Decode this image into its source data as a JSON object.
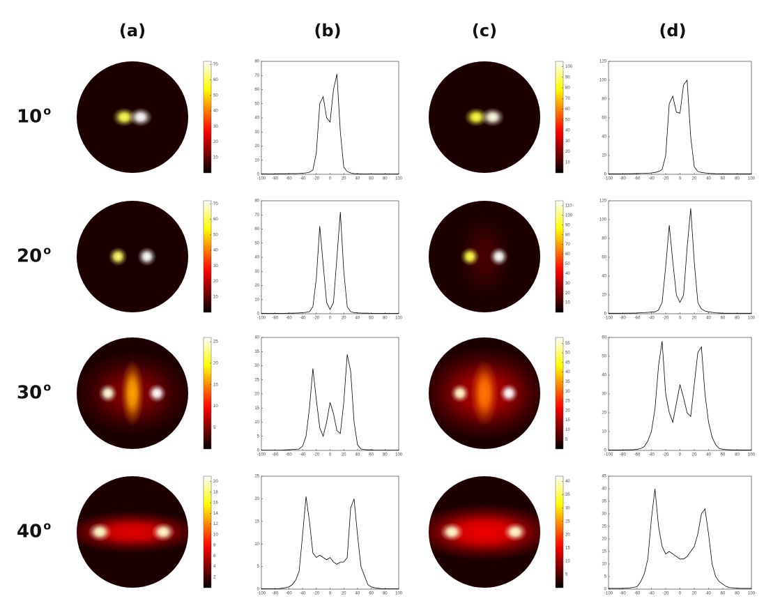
{
  "column_labels": [
    "(a)",
    "(b)",
    "(c)",
    "(d)"
  ],
  "row_labels": [
    {
      "text": "10",
      "sup": "o"
    },
    {
      "text": "20",
      "sup": "o"
    },
    {
      "text": "30",
      "sup": "o"
    },
    {
      "text": "40",
      "sup": "o"
    }
  ],
  "chart_data": [
    {
      "type": "heatmap",
      "clim": [
        0,
        72
      ],
      "cticks": [
        10,
        20,
        30,
        40,
        50,
        60,
        70
      ],
      "spots": [
        {
          "x": -9,
          "y": 0,
          "value": 60,
          "sx": 5,
          "sy": 4
        },
        {
          "x": 9,
          "y": 0,
          "value": 72,
          "sx": 5,
          "sy": 4
        }
      ]
    },
    {
      "type": "line",
      "color": "#000000",
      "xlim": [
        -100,
        100
      ],
      "xticks": [
        -100,
        -80,
        -60,
        -40,
        -20,
        0,
        20,
        40,
        60,
        80,
        100
      ],
      "ylim": [
        0,
        80
      ],
      "yticks": [
        0,
        10,
        20,
        30,
        40,
        50,
        60,
        70,
        80
      ],
      "x": [
        -100,
        -95,
        -90,
        -85,
        -80,
        -75,
        -70,
        -65,
        -60,
        -55,
        -50,
        -45,
        -40,
        -35,
        -30,
        -25,
        -20,
        -15,
        -10,
        -5,
        0,
        5,
        10,
        15,
        20,
        25,
        30,
        35,
        40,
        45,
        50,
        55,
        60,
        65,
        70,
        75,
        80,
        85,
        90,
        95,
        100
      ],
      "values": [
        0.3,
        0.3,
        0.3,
        0.3,
        0.3,
        0.4,
        0.4,
        0.4,
        0.5,
        0.5,
        0.5,
        0.6,
        0.8,
        1,
        1.5,
        3,
        15,
        50,
        55,
        40,
        37,
        60,
        71,
        30,
        5,
        2,
        1,
        0.5,
        0.4,
        0.3,
        0.3,
        0.3,
        0.3,
        0.3,
        0.3,
        0.3,
        0.3,
        0.3,
        0.3,
        0.3,
        0.3
      ]
    },
    {
      "type": "heatmap",
      "clim": [
        0,
        105
      ],
      "cticks": [
        10,
        20,
        30,
        40,
        50,
        60,
        70,
        80,
        90,
        100
      ],
      "spots": [
        {
          "x": -9,
          "y": 0,
          "value": 85,
          "sx": 5,
          "sy": 4
        },
        {
          "x": 9,
          "y": 0,
          "value": 102,
          "sx": 5,
          "sy": 4
        }
      ]
    },
    {
      "type": "line",
      "color": "#000000",
      "xlim": [
        -100,
        100
      ],
      "xticks": [
        -100,
        -80,
        -60,
        -40,
        -20,
        0,
        20,
        40,
        60,
        80,
        100
      ],
      "ylim": [
        0,
        120
      ],
      "yticks": [
        0,
        20,
        40,
        60,
        80,
        100,
        120
      ],
      "x": [
        -100,
        -95,
        -90,
        -85,
        -80,
        -75,
        -70,
        -65,
        -60,
        -55,
        -50,
        -45,
        -40,
        -35,
        -30,
        -25,
        -20,
        -15,
        -10,
        -5,
        0,
        5,
        10,
        15,
        20,
        25,
        30,
        35,
        40,
        45,
        50,
        55,
        60,
        65,
        70,
        75,
        80,
        85,
        90,
        95,
        100
      ],
      "values": [
        0.5,
        0.5,
        0.5,
        0.5,
        0.5,
        0.6,
        0.6,
        0.7,
        0.8,
        0.9,
        1,
        1.2,
        1.5,
        2,
        3,
        5,
        20,
        75,
        83,
        66,
        65,
        95,
        100,
        40,
        8,
        3,
        2,
        1.5,
        1,
        0.8,
        0.6,
        0.5,
        0.5,
        0.5,
        0.5,
        0.5,
        0.5,
        0.5,
        0.5,
        0.5,
        0.5
      ]
    },
    {
      "type": "heatmap",
      "clim": [
        0,
        72
      ],
      "cticks": [
        10,
        20,
        30,
        40,
        50,
        60,
        70
      ],
      "spots": [
        {
          "x": -16,
          "y": 0,
          "value": 62,
          "sx": 4,
          "sy": 4
        },
        {
          "x": 16,
          "y": 0,
          "value": 72,
          "sx": 4,
          "sy": 4
        }
      ]
    },
    {
      "type": "line",
      "color": "#000000",
      "xlim": [
        -100,
        100
      ],
      "xticks": [
        -100,
        -80,
        -60,
        -40,
        -20,
        0,
        20,
        40,
        60,
        80,
        100
      ],
      "ylim": [
        0,
        80
      ],
      "yticks": [
        0,
        10,
        20,
        30,
        40,
        50,
        60,
        70,
        80
      ],
      "x": [
        -100,
        -95,
        -90,
        -85,
        -80,
        -75,
        -70,
        -65,
        -60,
        -55,
        -50,
        -45,
        -40,
        -35,
        -30,
        -25,
        -20,
        -15,
        -10,
        -5,
        0,
        5,
        10,
        15,
        20,
        25,
        30,
        35,
        40,
        45,
        50,
        55,
        60,
        65,
        70,
        75,
        80,
        85,
        90,
        95,
        100
      ],
      "values": [
        0.3,
        0.3,
        0.3,
        0.3,
        0.3,
        0.3,
        0.3,
        0.3,
        0.4,
        0.4,
        0.5,
        0.6,
        0.8,
        1,
        1.5,
        5,
        25,
        62,
        35,
        8,
        3,
        8,
        40,
        72,
        30,
        5,
        1.5,
        0.8,
        0.6,
        0.5,
        0.4,
        0.4,
        0.3,
        0.3,
        0.3,
        0.3,
        0.3,
        0.3,
        0.3,
        0.3,
        0.3
      ]
    },
    {
      "type": "heatmap",
      "clim": [
        0,
        115
      ],
      "cticks": [
        10,
        20,
        30,
        40,
        50,
        60,
        70,
        80,
        90,
        100,
        110
      ],
      "spots": [
        {
          "x": -16,
          "y": 0,
          "value": 95,
          "sx": 4,
          "sy": 4
        },
        {
          "x": 16,
          "y": 0,
          "value": 115,
          "sx": 4,
          "sy": 4
        },
        {
          "x": 0,
          "y": 0,
          "value": 12,
          "sx": 12,
          "sy": 18
        }
      ]
    },
    {
      "type": "line",
      "color": "#000000",
      "xlim": [
        -100,
        100
      ],
      "xticks": [
        -100,
        -80,
        -60,
        -40,
        -20,
        0,
        20,
        40,
        60,
        80,
        100
      ],
      "ylim": [
        0,
        120
      ],
      "yticks": [
        0,
        20,
        40,
        60,
        80,
        100,
        120
      ],
      "x": [
        -100,
        -95,
        -90,
        -85,
        -80,
        -75,
        -70,
        -65,
        -60,
        -55,
        -50,
        -45,
        -40,
        -35,
        -30,
        -25,
        -20,
        -15,
        -10,
        -5,
        0,
        5,
        10,
        15,
        20,
        25,
        30,
        35,
        40,
        45,
        50,
        55,
        60,
        65,
        70,
        75,
        80,
        85,
        90,
        95,
        100
      ],
      "values": [
        0.5,
        0.5,
        0.5,
        0.5,
        0.5,
        0.6,
        0.6,
        0.7,
        0.8,
        1,
        1.2,
        1.5,
        1.8,
        2,
        4,
        12,
        50,
        94,
        55,
        20,
        12,
        20,
        70,
        112,
        55,
        12,
        5,
        3,
        2,
        1.5,
        1,
        0.8,
        0.6,
        0.5,
        0.5,
        0.5,
        0.5,
        0.5,
        0.5,
        0.5,
        0.5
      ]
    },
    {
      "type": "heatmap",
      "clim": [
        0,
        26
      ],
      "cticks": [
        5,
        10,
        15,
        20,
        25
      ],
      "spots": [
        {
          "x": -27,
          "y": 0,
          "value": 25,
          "sx": 4,
          "sy": 4
        },
        {
          "x": 27,
          "y": 0,
          "value": 26,
          "sx": 4,
          "sy": 4
        },
        {
          "x": 0,
          "y": 0,
          "value": 16,
          "sx": 5,
          "sy": 14
        },
        {
          "x": 0,
          "y": 0,
          "value": 5,
          "sx": 25,
          "sy": 18
        }
      ]
    },
    {
      "type": "line",
      "color": "#000000",
      "xlim": [
        -100,
        100
      ],
      "xticks": [
        -100,
        -80,
        -60,
        -40,
        -20,
        0,
        20,
        40,
        60,
        80,
        100
      ],
      "ylim": [
        0,
        40
      ],
      "yticks": [
        0,
        5,
        10,
        15,
        20,
        25,
        30,
        35,
        40
      ],
      "x": [
        -100,
        -95,
        -90,
        -85,
        -80,
        -75,
        -70,
        -65,
        -60,
        -55,
        -50,
        -45,
        -40,
        -35,
        -30,
        -25,
        -20,
        -15,
        -10,
        -5,
        0,
        5,
        10,
        15,
        20,
        25,
        30,
        35,
        40,
        45,
        50,
        55,
        60,
        65,
        70,
        75,
        80,
        85,
        90,
        95,
        100
      ],
      "values": [
        0.1,
        0.1,
        0.1,
        0.1,
        0.1,
        0.1,
        0.1,
        0.2,
        0.2,
        0.3,
        0.4,
        0.5,
        1.5,
        5,
        15,
        29,
        18,
        8,
        5,
        10,
        17,
        13,
        7,
        6,
        17,
        34,
        28,
        10,
        2,
        0.5,
        0.3,
        0.2,
        0.2,
        0.1,
        0.1,
        0.1,
        0.1,
        0.1,
        0.1,
        0.1,
        0.1
      ]
    },
    {
      "type": "heatmap",
      "clim": [
        0,
        58
      ],
      "cticks": [
        5,
        10,
        15,
        20,
        25,
        30,
        35,
        40,
        45,
        50,
        55
      ],
      "spots": [
        {
          "x": -27,
          "y": 0,
          "value": 55,
          "sx": 4,
          "sy": 4
        },
        {
          "x": 27,
          "y": 0,
          "value": 58,
          "sx": 4,
          "sy": 4
        },
        {
          "x": 0,
          "y": 0,
          "value": 32,
          "sx": 6,
          "sy": 14
        },
        {
          "x": 0,
          "y": 0,
          "value": 15,
          "sx": 28,
          "sy": 20
        }
      ]
    },
    {
      "type": "line",
      "color": "#000000",
      "xlim": [
        -100,
        100
      ],
      "xticks": [
        -100,
        -80,
        -60,
        -40,
        -20,
        0,
        20,
        40,
        60,
        80,
        100
      ],
      "ylim": [
        0,
        60
      ],
      "yticks": [
        0,
        10,
        20,
        30,
        40,
        50,
        60
      ],
      "x": [
        -100,
        -95,
        -90,
        -85,
        -80,
        -75,
        -70,
        -65,
        -60,
        -55,
        -50,
        -45,
        -40,
        -35,
        -30,
        -25,
        -20,
        -15,
        -10,
        -5,
        0,
        5,
        10,
        15,
        20,
        25,
        30,
        35,
        40,
        45,
        50,
        55,
        60,
        65,
        70,
        75,
        80,
        85,
        90,
        95,
        100
      ],
      "values": [
        0.2,
        0.2,
        0.2,
        0.2,
        0.2,
        0.3,
        0.3,
        0.4,
        0.6,
        1,
        2,
        5,
        10,
        22,
        45,
        58,
        30,
        20,
        15,
        25,
        35,
        28,
        20,
        18,
        35,
        52,
        55,
        30,
        15,
        7,
        3,
        1,
        0.6,
        0.4,
        0.3,
        0.2,
        0.2,
        0.2,
        0.2,
        0.2,
        0.2
      ]
    },
    {
      "type": "heatmap",
      "clim": [
        0,
        21
      ],
      "cticks": [
        2,
        4,
        6,
        8,
        10,
        12,
        14,
        16,
        18,
        20
      ],
      "spots": [
        {
          "x": -36,
          "y": 0,
          "value": 20,
          "sx": 5,
          "sy": 4
        },
        {
          "x": 34,
          "y": 0,
          "value": 20,
          "sx": 5,
          "sy": 4
        },
        {
          "x": 0,
          "y": 0,
          "value": 7,
          "sx": 30,
          "sy": 9
        }
      ]
    },
    {
      "type": "line",
      "color": "#000000",
      "xlim": [
        -100,
        100
      ],
      "xticks": [
        -100,
        -80,
        -60,
        -40,
        -20,
        0,
        20,
        40,
        60,
        80,
        100
      ],
      "ylim": [
        0,
        25
      ],
      "yticks": [
        0,
        5,
        10,
        15,
        20,
        25
      ],
      "x": [
        -100,
        -95,
        -90,
        -85,
        -80,
        -75,
        -70,
        -65,
        -60,
        -55,
        -50,
        -45,
        -40,
        -35,
        -30,
        -25,
        -20,
        -15,
        -10,
        -5,
        0,
        5,
        10,
        15,
        20,
        25,
        30,
        35,
        40,
        45,
        50,
        55,
        60,
        65,
        70,
        75,
        80,
        85,
        90,
        95,
        100
      ],
      "values": [
        0.1,
        0.1,
        0.1,
        0.1,
        0.1,
        0.1,
        0.2,
        0.3,
        0.5,
        1,
        2,
        4,
        12,
        20.5,
        15,
        8,
        7,
        7.5,
        7,
        6.5,
        7,
        6,
        5.5,
        6,
        6,
        7,
        18,
        20,
        12,
        5,
        3,
        1,
        0.5,
        0.3,
        0.2,
        0.1,
        0.1,
        0.1,
        0.1,
        0.1,
        0.1
      ]
    },
    {
      "type": "heatmap",
      "clim": [
        0,
        42
      ],
      "cticks": [
        5,
        10,
        15,
        20,
        25,
        30,
        35,
        40
      ],
      "spots": [
        {
          "x": -36,
          "y": 0,
          "value": 40,
          "sx": 5,
          "sy": 4
        },
        {
          "x": 34,
          "y": 0,
          "value": 40,
          "sx": 5,
          "sy": 4
        },
        {
          "x": 0,
          "y": 0,
          "value": 15,
          "sx": 32,
          "sy": 12
        }
      ]
    },
    {
      "type": "line",
      "color": "#000000",
      "xlim": [
        -100,
        100
      ],
      "xticks": [
        -100,
        -80,
        -60,
        -40,
        -20,
        0,
        20,
        40,
        60,
        80,
        100
      ],
      "ylim": [
        0,
        45
      ],
      "yticks": [
        0,
        5,
        10,
        15,
        20,
        25,
        30,
        35,
        40,
        45
      ],
      "x": [
        -100,
        -95,
        -90,
        -85,
        -80,
        -75,
        -70,
        -65,
        -60,
        -55,
        -50,
        -45,
        -40,
        -35,
        -30,
        -25,
        -20,
        -15,
        -10,
        -5,
        0,
        5,
        10,
        15,
        20,
        25,
        30,
        35,
        40,
        45,
        50,
        55,
        60,
        65,
        70,
        75,
        80,
        85,
        90,
        95,
        100
      ],
      "values": [
        0.3,
        0.3,
        0.3,
        0.3,
        0.3,
        0.4,
        0.5,
        0.7,
        1,
        3,
        6,
        12,
        28,
        40,
        25,
        17,
        14,
        15,
        14,
        13,
        12,
        12,
        13,
        15,
        17,
        22,
        30,
        32,
        22,
        10,
        5,
        3,
        2,
        1,
        0.6,
        0.5,
        0.4,
        0.3,
        0.3,
        0.3,
        0.3
      ]
    }
  ]
}
